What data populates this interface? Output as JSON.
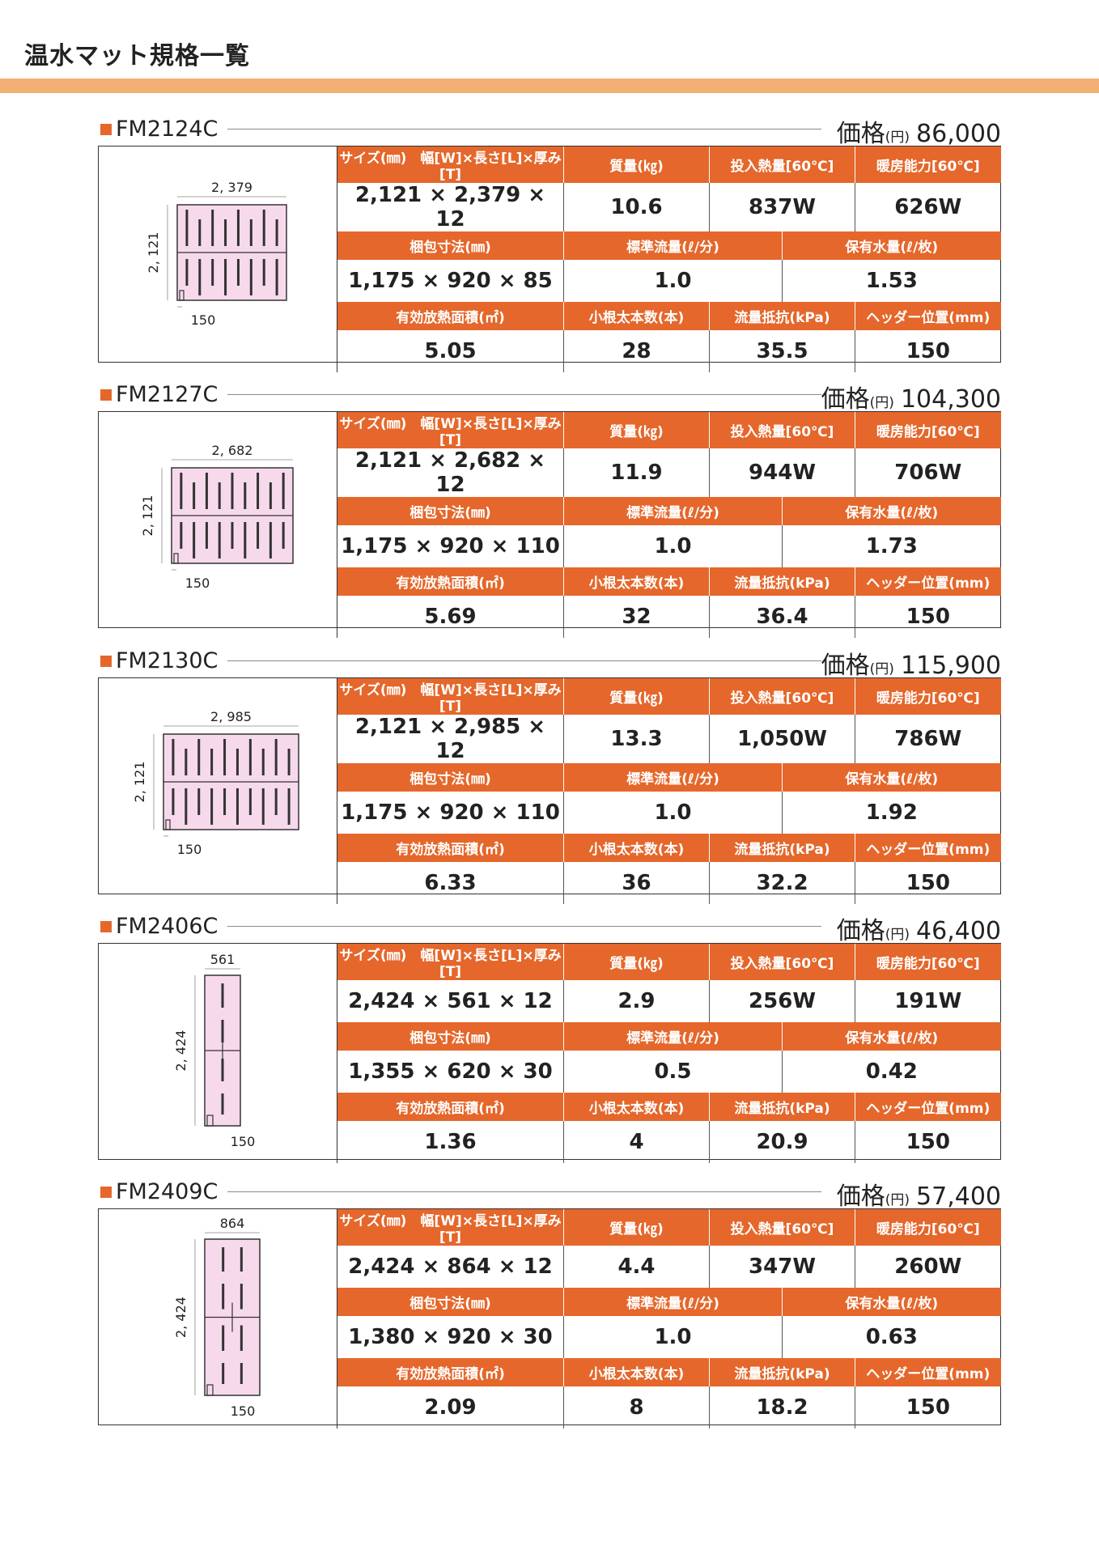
{
  "page_title": "温水マット規格一覧",
  "labels": {
    "size": "サイズ(㎜)　幅[W]×長さ[L]×厚み[T]",
    "mass": "質量(㎏)",
    "heat_input": "投入熱量[60℃]",
    "heating_capacity": "暖房能力[60℃]",
    "package_size": "梱包寸法(㎜)",
    "std_flow": "標準流量(ℓ/分)",
    "water_content": "保有水量(ℓ/枚)",
    "effective_area": "有効放熱面積(㎡)",
    "root_count": "小根太本数(本)",
    "flow_resistance": "流量抵抗(kPa)",
    "header_position": "ヘッダー位置(mm)",
    "price_label": "価格",
    "price_unit": "(円)"
  },
  "products": [
    {
      "model": "FM2124C",
      "price": "86,000",
      "size": "2,121 × 2,379 × 12",
      "mass": "10.6",
      "heat_input": "837W",
      "heating_capacity": "626W",
      "package_size": "1,175 × 920 × 85",
      "std_flow": "1.0",
      "water_content": "1.53",
      "effective_area": "5.05",
      "root_count": "28",
      "flow_resistance": "35.5",
      "header_position": "150",
      "dim_w": "2, 379",
      "dim_l": "2, 121",
      "dim_h": "150"
    },
    {
      "model": "FM2127C",
      "price": "104,300",
      "size": "2,121 × 2,682 × 12",
      "mass": "11.9",
      "heat_input": "944W",
      "heating_capacity": "706W",
      "package_size": "1,175 × 920 × 110",
      "std_flow": "1.0",
      "water_content": "1.73",
      "effective_area": "5.69",
      "root_count": "32",
      "flow_resistance": "36.4",
      "header_position": "150",
      "dim_w": "2, 682",
      "dim_l": "2, 121",
      "dim_h": "150"
    },
    {
      "model": "FM2130C",
      "price": "115,900",
      "size": "2,121 × 2,985 × 12",
      "mass": "13.3",
      "heat_input": "1,050W",
      "heating_capacity": "786W",
      "package_size": "1,175 × 920 × 110",
      "std_flow": "1.0",
      "water_content": "1.92",
      "effective_area": "6.33",
      "root_count": "36",
      "flow_resistance": "32.2",
      "header_position": "150",
      "dim_w": "2, 985",
      "dim_l": "2, 121",
      "dim_h": "150"
    },
    {
      "model": "FM2406C",
      "price": "46,400",
      "size": "2,424 × 561 × 12",
      "mass": "2.9",
      "heat_input": "256W",
      "heating_capacity": "191W",
      "package_size": "1,355 × 620 × 30",
      "std_flow": "0.5",
      "water_content": "0.42",
      "effective_area": "1.36",
      "root_count": "4",
      "flow_resistance": "20.9",
      "header_position": "150",
      "dim_w": "561",
      "dim_l": "2, 424",
      "dim_h": "150"
    },
    {
      "model": "FM2409C",
      "price": "57,400",
      "size": "2,424 × 864 × 12",
      "mass": "4.4",
      "heat_input": "347W",
      "heating_capacity": "260W",
      "package_size": "1,380 × 920 × 30",
      "std_flow": "1.0",
      "water_content": "0.63",
      "effective_area": "2.09",
      "root_count": "8",
      "flow_resistance": "18.2",
      "header_position": "150",
      "dim_w": "864",
      "dim_l": "2, 424",
      "dim_h": "150"
    }
  ],
  "colors": {
    "accent": "#e5672b",
    "title_bar": "#f2b072",
    "mat_fill": "#f7d9ec"
  }
}
